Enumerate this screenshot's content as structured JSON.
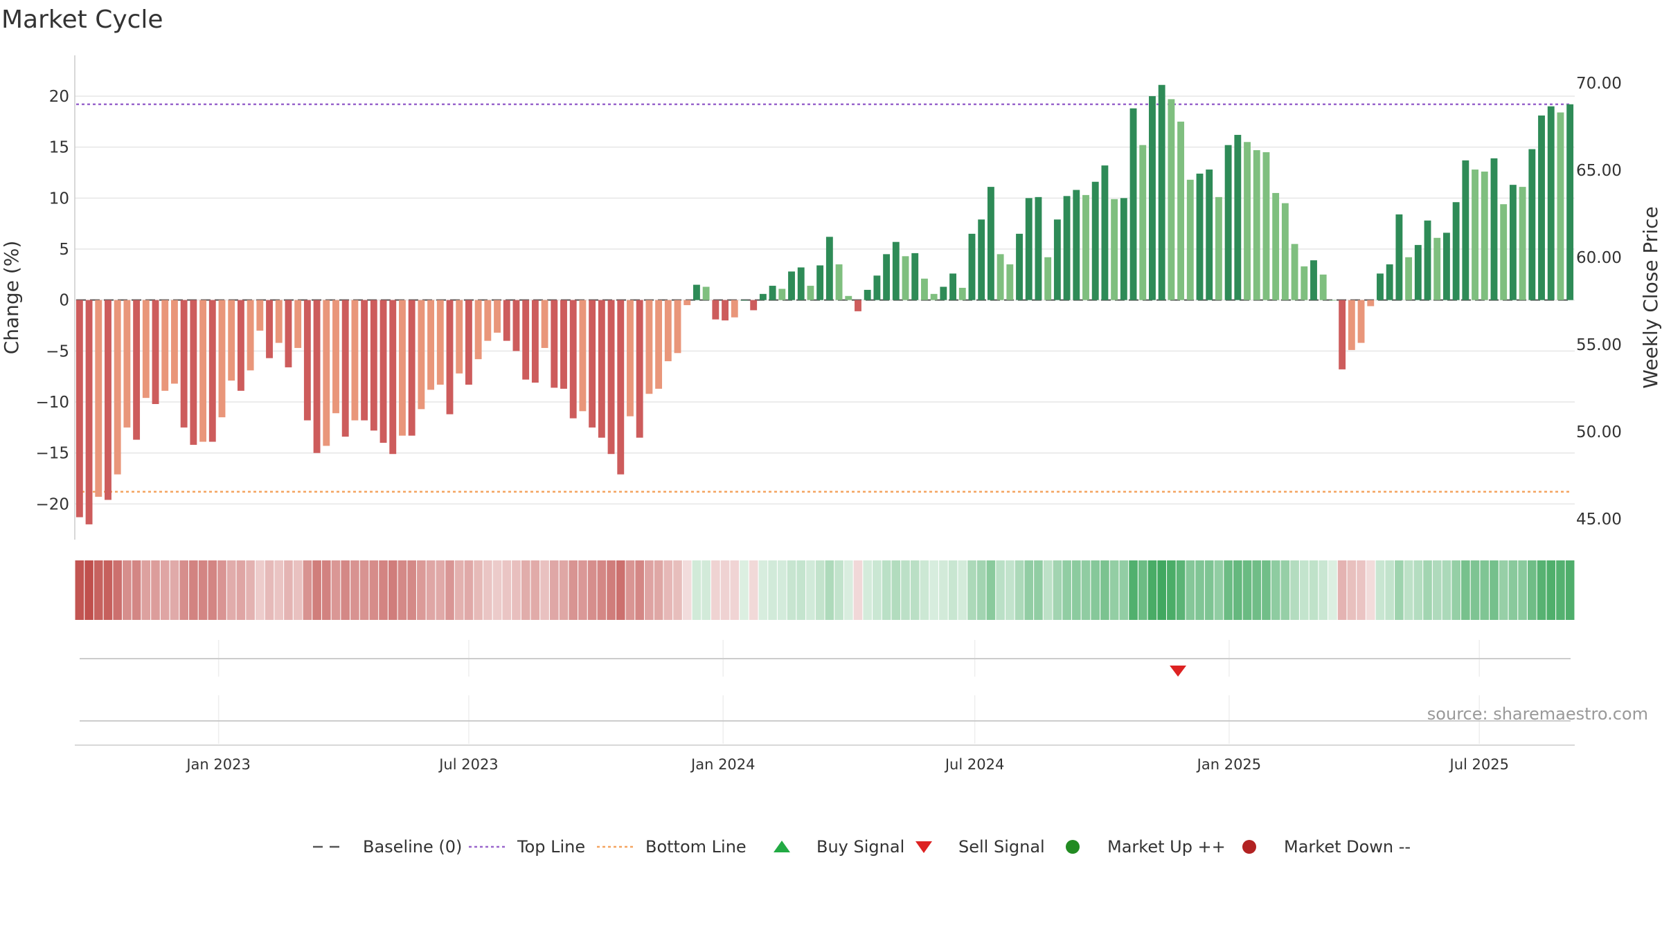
{
  "title": "Market Cycle",
  "source": "source: sharemaestro.com",
  "chart_data": {
    "type": "bar",
    "title": "Market Cycle",
    "ylabel_left": "Change (%)",
    "ylabel_right": "Weekly Close Price",
    "ylim": [
      -23.5,
      24
    ],
    "y_ticks": [
      -20,
      -15,
      -10,
      -5,
      0,
      5,
      10,
      15,
      20
    ],
    "y_tick_labels": [
      "−20",
      "−15",
      "−10",
      "−5",
      "0",
      "5",
      "10",
      "15",
      "20"
    ],
    "y2_tick_labels": [
      "45.00",
      "50.00",
      "55.00",
      "60.00",
      "65.00",
      "70.00"
    ],
    "y2_ticks": [
      45,
      50,
      55,
      60,
      65,
      70
    ],
    "x_range": [
      "2022-09-19",
      "2025-09-08"
    ],
    "date_ticks": [
      {
        "date": "2023-01-01",
        "label": "Jan 2023"
      },
      {
        "date": "2023-07-01",
        "label": "Jul 2023"
      },
      {
        "date": "2024-01-01",
        "label": "Jan 2024"
      },
      {
        "date": "2024-07-01",
        "label": "Jul 2024"
      },
      {
        "date": "2025-01-01",
        "label": "Jan 2025"
      },
      {
        "date": "2025-07-01",
        "label": "Jul 2025"
      }
    ],
    "first_week": "2022-09-19",
    "top_line": 19.2,
    "bottom_line": -18.8,
    "baseline": 0,
    "grid": true,
    "legend_position": "bottom-center",
    "colors": {
      "up_strong": "#2e8b57",
      "up_weak": "#7fbf7f",
      "down_strong": "#cd5c5c",
      "down_weak": "#e9967a",
      "top_line": "#9966cc",
      "bottom_line": "#f4a460",
      "baseline": "#555555",
      "buy": "#22aa44",
      "sell": "#dd2222",
      "market_up": "#228b22",
      "market_down": "#b22222"
    },
    "series": [
      {
        "name": "Change (%)",
        "values": [
          -21.3,
          -22,
          -19.3,
          -19.6,
          -17.1,
          -12.5,
          -13.7,
          -9.6,
          -10.2,
          -8.9,
          -8.2,
          -12.5,
          -14.2,
          -13.9,
          -13.9,
          -11.5,
          -7.9,
          -8.9,
          -6.9,
          -3,
          -5.7,
          -4.2,
          -6.6,
          -4.7,
          -11.8,
          -15,
          -14.3,
          -11.1,
          -13.4,
          -11.8,
          -11.8,
          -12.8,
          -14,
          -15.1,
          -13.3,
          -13.3,
          -10.7,
          -8.8,
          -8.3,
          -11.2,
          -7.2,
          -8.3,
          -5.8,
          -4,
          -3.2,
          -4,
          -5,
          -7.8,
          -8.1,
          -4.7,
          -8.6,
          -8.7,
          -11.6,
          -10.9,
          -12.5,
          -13.5,
          -15.1,
          -17.1,
          -11.4,
          -13.5,
          -9.2,
          -8.7,
          -6,
          -5.2,
          -0.5,
          1.5,
          1.3,
          -1.9,
          -2,
          -1.7,
          0,
          -1,
          0.6,
          1.4,
          1.1,
          2.8,
          3.2,
          1.4,
          3.4,
          6.2,
          3.5,
          0.4,
          -1.1,
          1,
          2.4,
          4.5,
          5.7,
          4.3,
          4.6,
          2.1,
          0.6,
          1.3,
          2.6,
          1.2,
          6.5,
          7.9,
          11.1,
          4.5,
          3.5,
          6.5,
          10,
          10.1,
          4.2,
          7.9,
          10.2,
          10.8,
          10.3,
          11.6,
          13.2,
          9.9,
          10,
          18.8,
          15.2,
          20,
          21.1,
          19.7,
          17.5,
          11.8,
          12.4,
          12.8,
          10.1,
          15.2,
          16.2,
          15.5,
          14.7,
          14.5,
          10.5,
          9.5,
          5.5,
          3.3,
          3.9,
          2.5,
          0,
          -6.8,
          -4.9,
          -4.2,
          -0.6,
          2.6,
          3.5,
          8.4,
          4.2,
          5.4,
          7.8,
          6.1,
          6.6,
          9.6,
          13.7,
          12.8,
          12.6,
          13.9,
          9.4,
          11.3,
          11.1,
          14.8,
          18.1,
          19,
          18.4,
          19.2
        ]
      }
    ],
    "markers": [
      {
        "type": "sell",
        "date": "2024-11-25"
      }
    ],
    "legend": [
      {
        "label": "Baseline (0)",
        "symbol": "dash",
        "color": "#555555"
      },
      {
        "label": "Top Line",
        "symbol": "dotted",
        "color": "#9966cc"
      },
      {
        "label": "Bottom Line",
        "symbol": "dotted",
        "color": "#f4a460"
      },
      {
        "label": "Buy Signal",
        "symbol": "triangle-up",
        "color": "#22aa44"
      },
      {
        "label": "Sell Signal",
        "symbol": "triangle-down",
        "color": "#dd2222"
      },
      {
        "label": "Market Up ++",
        "symbol": "circle",
        "color": "#228b22"
      },
      {
        "label": "Market Down --",
        "symbol": "circle",
        "color": "#b22222"
      }
    ]
  }
}
